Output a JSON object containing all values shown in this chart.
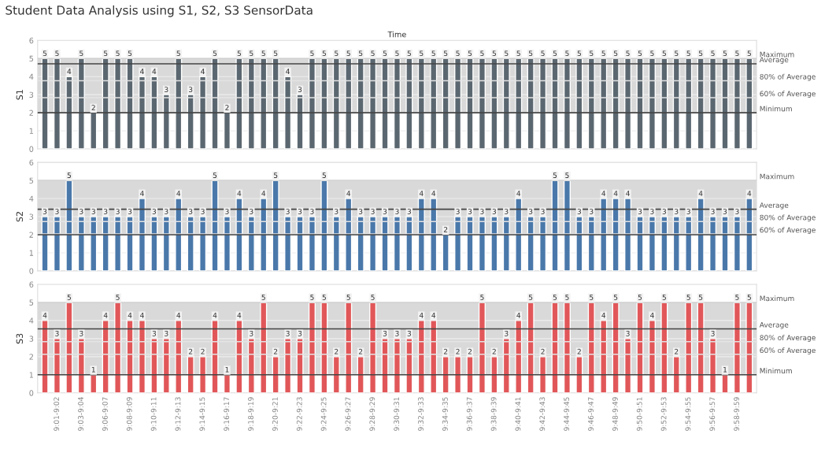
{
  "chart_data": [
    {
      "type": "bar",
      "title": "Student Data Analysis using S1, S2, S3 SensorData",
      "xlabel": "Time",
      "ylabel": "S1",
      "color": "#5b6770",
      "categories": [
        null,
        null,
        null,
        null,
        null,
        null,
        null,
        null,
        null,
        null,
        null,
        null,
        null,
        null,
        null,
        null,
        null,
        null,
        null,
        null,
        null,
        null,
        null,
        null,
        null,
        null,
        null,
        null,
        null,
        null,
        null,
        null,
        null,
        null,
        null,
        null,
        null,
        null,
        null,
        null,
        null,
        null,
        null,
        null,
        null,
        null,
        null,
        null,
        null,
        null,
        null,
        null,
        null,
        null,
        null,
        null,
        null,
        null,
        null
      ],
      "values": [
        5,
        5,
        4,
        5,
        2,
        5,
        5,
        5,
        4,
        4,
        3,
        5,
        3,
        4,
        5,
        2,
        5,
        5,
        5,
        5,
        4,
        3,
        5,
        5,
        5,
        5,
        5,
        5,
        5,
        5,
        5,
        5,
        5,
        5,
        5,
        5,
        5,
        5,
        5,
        5,
        5,
        5,
        5,
        5,
        5,
        5,
        5,
        5,
        5,
        5,
        5,
        5,
        5,
        5,
        5,
        5,
        5,
        5,
        5
      ],
      "ylim": [
        0,
        6
      ],
      "yticks": [
        0,
        1,
        2,
        3,
        4,
        5,
        6
      ],
      "grid": "y",
      "data_labels": true,
      "bands": [
        {
          "axis": "y",
          "from": 2,
          "to": 5,
          "color": "#d9d9d9"
        }
      ],
      "ref_lines": [
        {
          "axis": "y",
          "value": 5,
          "label": "Maximum",
          "color": "#cfcfcf"
        },
        {
          "axis": "y",
          "value": 4.71,
          "label": "Average",
          "color": "#444444"
        },
        {
          "axis": "y",
          "value": 3.77,
          "label": "80% of Average",
          "color": "#e4e4e4"
        },
        {
          "axis": "y",
          "value": 2.83,
          "label": "60% of Average",
          "color": "#e4e4e4"
        },
        {
          "axis": "y",
          "value": 2,
          "label": "Minimum",
          "color": "#444444"
        }
      ]
    },
    {
      "type": "bar",
      "ylabel": "S2",
      "color": "#4a78aa",
      "categories": [
        null,
        null,
        null,
        null,
        null,
        null,
        null,
        null,
        null,
        null,
        null,
        null,
        null,
        null,
        null,
        null,
        null,
        null,
        null,
        null,
        null,
        null,
        null,
        null,
        null,
        null,
        null,
        null,
        null,
        null,
        null,
        null,
        null,
        null,
        null,
        null,
        null,
        null,
        null,
        null,
        null,
        null,
        null,
        null,
        null,
        null,
        null,
        null,
        null,
        null,
        null,
        null,
        null,
        null,
        null,
        null,
        null,
        null,
        null
      ],
      "values": [
        3,
        3,
        5,
        3,
        3,
        3,
        3,
        3,
        4,
        3,
        3,
        4,
        3,
        3,
        5,
        3,
        4,
        3,
        4,
        5,
        3,
        3,
        3,
        5,
        3,
        4,
        3,
        3,
        3,
        3,
        3,
        4,
        4,
        2,
        3,
        3,
        3,
        3,
        3,
        4,
        3,
        3,
        5,
        5,
        3,
        3,
        4,
        4,
        4,
        3,
        3,
        3,
        3,
        3,
        4,
        3,
        3,
        3,
        4
      ],
      "ylim": [
        0,
        6
      ],
      "yticks": [
        0,
        1,
        2,
        3,
        4,
        5,
        6
      ],
      "grid": "y",
      "data_labels": true,
      "bands": [
        {
          "axis": "y",
          "from": 2,
          "to": 5,
          "color": "#d9d9d9"
        }
      ],
      "ref_lines": [
        {
          "axis": "y",
          "value": 5,
          "label": "Maximum",
          "color": "#cfcfcf"
        },
        {
          "axis": "y",
          "value": 3.41,
          "label": "Average",
          "color": "#444444"
        },
        {
          "axis": "y",
          "value": 2.73,
          "label": "80% of Average",
          "color": "#e4e4e4"
        },
        {
          "axis": "y",
          "value": 2.04,
          "label": "60% of Average",
          "color": "#e4e4e4"
        },
        {
          "axis": "y",
          "value": 2,
          "label": null,
          "color": "#444444"
        }
      ]
    },
    {
      "type": "bar",
      "ylabel": "S3",
      "color": "#e15759",
      "categories": [
        null,
        "9:01-9:02",
        null,
        "9:03-9:04",
        null,
        "9:06-9:07",
        null,
        "9:08-9:09",
        null,
        "9:10-9:11",
        null,
        "9:12-9:13",
        null,
        "9:14-9:15",
        null,
        "9:16-9:17",
        null,
        "9:18-9:19",
        null,
        "9:20-9:21",
        null,
        "9:22-9:23",
        null,
        "9:24-9:25",
        null,
        "9:26-9:27",
        null,
        "9:28-9:29",
        null,
        "9:30-9:31",
        null,
        "9:32-9:33",
        null,
        "9:34-9:35",
        null,
        "9:36-9:37",
        null,
        "9:38-9:39",
        null,
        "9:40-9:41",
        null,
        "9:42-9:43",
        null,
        "9:44-9:45",
        null,
        "9:46-9:47",
        null,
        "9:48-9:49",
        null,
        "9:50-9:51",
        null,
        "9:52-9:53",
        null,
        "9:54-9:55",
        null,
        "9:56-9:57",
        null,
        "9:58-9:59",
        null
      ],
      "values": [
        4,
        3,
        5,
        3,
        1,
        4,
        5,
        4,
        4,
        3,
        3,
        4,
        2,
        2,
        4,
        1,
        4,
        3,
        5,
        2,
        3,
        3,
        5,
        5,
        2,
        5,
        2,
        5,
        3,
        3,
        3,
        4,
        4,
        2,
        2,
        2,
        5,
        2,
        3,
        4,
        5,
        2,
        5,
        5,
        2,
        5,
        4,
        5,
        3,
        5,
        4,
        5,
        2,
        5,
        5,
        3,
        1,
        5,
        5
      ],
      "ylim": [
        0,
        6
      ],
      "yticks": [
        0,
        1,
        2,
        3,
        4,
        5,
        6
      ],
      "grid": "y",
      "data_labels": true,
      "bands": [
        {
          "axis": "y",
          "from": 1,
          "to": 5,
          "color": "#d9d9d9"
        }
      ],
      "ref_lines": [
        {
          "axis": "y",
          "value": 5,
          "label": "Maximum",
          "color": "#cfcfcf"
        },
        {
          "axis": "y",
          "value": 3.54,
          "label": "Average",
          "color": "#444444"
        },
        {
          "axis": "y",
          "value": 2.83,
          "label": "80% of Average",
          "color": "#e4e4e4"
        },
        {
          "axis": "y",
          "value": 2.13,
          "label": "60% of Average",
          "color": "#e4e4e4"
        },
        {
          "axis": "y",
          "value": 1,
          "label": "Minimum",
          "color": "#444444"
        }
      ]
    }
  ]
}
